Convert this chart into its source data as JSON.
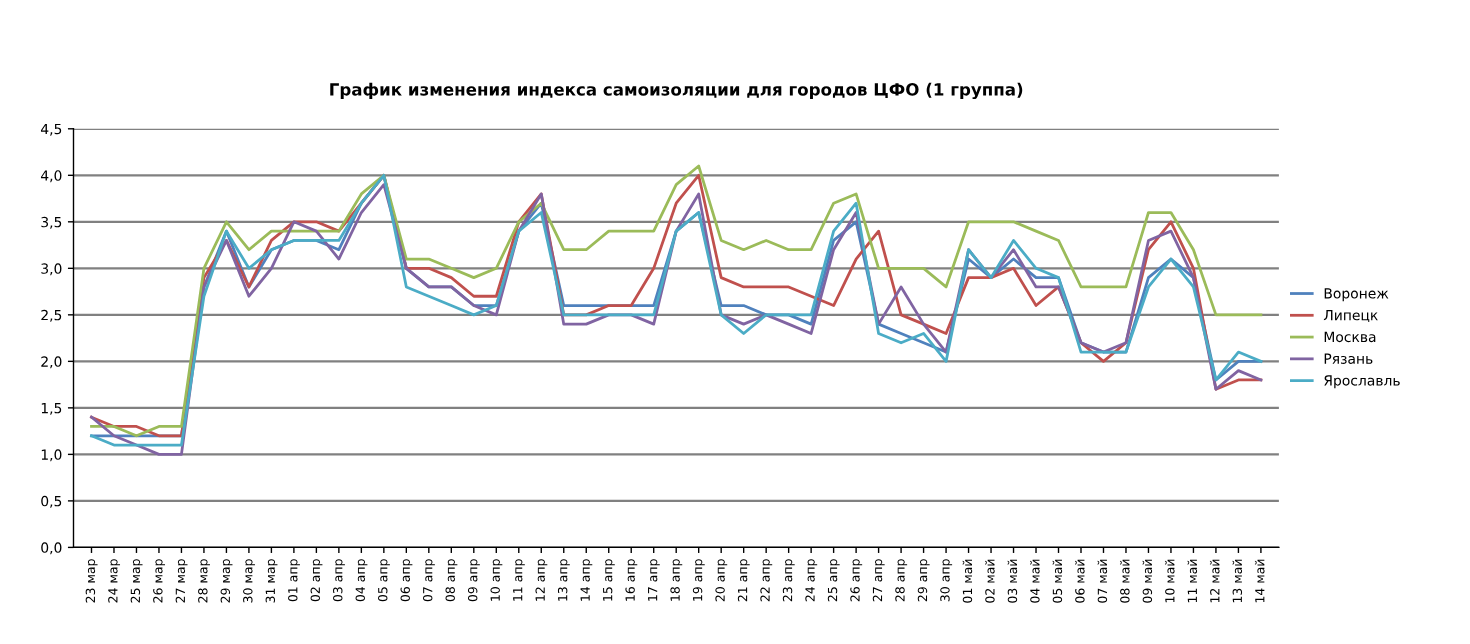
{
  "chart_data": {
    "type": "line",
    "title": "График изменения индекса самоизоляции для городов ЦФО (1 группа)",
    "categories": [
      "23 мар",
      "24 мар",
      "25 мар",
      "26 мар",
      "27 мар",
      "28 мар",
      "29 мар",
      "30 мар",
      "31 мар",
      "01 апр",
      "02 апр",
      "03 апр",
      "04 апр",
      "05 апр",
      "06 апр",
      "07 апр",
      "08 апр",
      "09 апр",
      "10 апр",
      "11 апр",
      "12 апр",
      "13 апр",
      "14 апр",
      "15 апр",
      "16 апр",
      "17 апр",
      "18 апр",
      "19 апр",
      "20 апр",
      "21 апр",
      "22 апр",
      "23 апр",
      "24 апр",
      "25 апр",
      "26 апр",
      "27 апр",
      "28 апр",
      "29 апр",
      "30 апр",
      "01 май",
      "02 май",
      "03 май",
      "04 май",
      "05 май",
      "06 май",
      "07 май",
      "08 май",
      "09 май",
      "10 май",
      "11 май",
      "12 май",
      "13 май",
      "14 май"
    ],
    "series": [
      {
        "name": "Воронеж",
        "color": "#4f81bd",
        "values": [
          1.2,
          1.2,
          1.2,
          1.2,
          1.2,
          2.8,
          3.4,
          2.8,
          3.2,
          3.3,
          3.3,
          3.2,
          3.7,
          4.0,
          3.0,
          2.8,
          2.8,
          2.6,
          2.6,
          3.4,
          3.7,
          2.6,
          2.6,
          2.6,
          2.6,
          2.6,
          3.4,
          3.6,
          2.6,
          2.6,
          2.5,
          2.5,
          2.4,
          3.3,
          3.5,
          2.4,
          2.3,
          2.2,
          2.1,
          3.1,
          2.9,
          3.1,
          2.9,
          2.9,
          2.2,
          2.1,
          2.1,
          2.9,
          3.1,
          2.9,
          1.8,
          2.0,
          2.0
        ]
      },
      {
        "name": "Липецк",
        "color": "#c0504d",
        "values": [
          1.4,
          1.3,
          1.3,
          1.2,
          1.2,
          2.9,
          3.3,
          2.8,
          3.3,
          3.5,
          3.5,
          3.4,
          3.7,
          4.0,
          3.0,
          3.0,
          2.9,
          2.7,
          2.7,
          3.5,
          3.8,
          2.5,
          2.5,
          2.6,
          2.6,
          3.0,
          3.7,
          4.0,
          2.9,
          2.8,
          2.8,
          2.8,
          2.7,
          2.6,
          3.1,
          3.4,
          2.5,
          2.4,
          2.3,
          2.9,
          2.9,
          3.0,
          2.6,
          2.8,
          2.2,
          2.0,
          2.2,
          3.2,
          3.5,
          3.0,
          1.7,
          1.8,
          1.8
        ]
      },
      {
        "name": "Москва",
        "color": "#9bbb59",
        "values": [
          1.3,
          1.3,
          1.2,
          1.3,
          1.3,
          3.0,
          3.5,
          3.2,
          3.4,
          3.4,
          3.4,
          3.4,
          3.8,
          4.0,
          3.1,
          3.1,
          3.0,
          2.9,
          3.0,
          3.5,
          3.7,
          3.2,
          3.2,
          3.4,
          3.4,
          3.4,
          3.9,
          4.1,
          3.3,
          3.2,
          3.3,
          3.2,
          3.2,
          3.7,
          3.8,
          3.0,
          3.0,
          3.0,
          2.8,
          3.5,
          3.5,
          3.5,
          3.4,
          3.3,
          2.8,
          2.8,
          2.8,
          3.6,
          3.6,
          3.2,
          2.5,
          2.5,
          2.5
        ]
      },
      {
        "name": "Рязань",
        "color": "#8064a2",
        "values": [
          1.4,
          1.2,
          1.1,
          1.0,
          1.0,
          2.8,
          3.3,
          2.7,
          3.0,
          3.5,
          3.4,
          3.1,
          3.6,
          3.9,
          3.0,
          2.8,
          2.8,
          2.6,
          2.5,
          3.4,
          3.8,
          2.4,
          2.4,
          2.5,
          2.5,
          2.4,
          3.4,
          3.8,
          2.5,
          2.4,
          2.5,
          2.4,
          2.3,
          3.2,
          3.6,
          2.4,
          2.8,
          2.4,
          2.1,
          3.2,
          2.9,
          3.2,
          2.8,
          2.8,
          2.2,
          2.1,
          2.2,
          3.3,
          3.4,
          2.9,
          1.7,
          1.9,
          1.8
        ]
      },
      {
        "name": "Ярославль",
        "color": "#4bacc6",
        "values": [
          1.2,
          1.1,
          1.1,
          1.1,
          1.1,
          2.7,
          3.4,
          3.0,
          3.2,
          3.3,
          3.3,
          3.3,
          3.7,
          4.0,
          2.8,
          2.7,
          2.6,
          2.5,
          2.6,
          3.4,
          3.6,
          2.5,
          2.5,
          2.5,
          2.5,
          2.5,
          3.4,
          3.6,
          2.5,
          2.3,
          2.5,
          2.5,
          2.5,
          3.4,
          3.7,
          2.3,
          2.2,
          2.3,
          2.0,
          3.2,
          2.9,
          3.3,
          3.0,
          2.9,
          2.1,
          2.1,
          2.1,
          2.8,
          3.1,
          2.8,
          1.8,
          2.1,
          2.0
        ]
      }
    ],
    "ylim": [
      0,
      4.5
    ],
    "yticks": [
      {
        "value": 0,
        "label": "0,0"
      },
      {
        "value": 0.5,
        "label": "0,5"
      },
      {
        "value": 1,
        "label": "1,0"
      },
      {
        "value": 1.5,
        "label": "1,5"
      },
      {
        "value": 2,
        "label": "2,0"
      },
      {
        "value": 2.5,
        "label": "2,5"
      },
      {
        "value": 3,
        "label": "3,0"
      },
      {
        "value": 3.5,
        "label": "3,5"
      },
      {
        "value": 4,
        "label": "4,0"
      },
      {
        "value": 4.5,
        "label": "4,5"
      }
    ],
    "grid": "y",
    "legend": "right",
    "marker": "none",
    "line_style": "solid"
  }
}
